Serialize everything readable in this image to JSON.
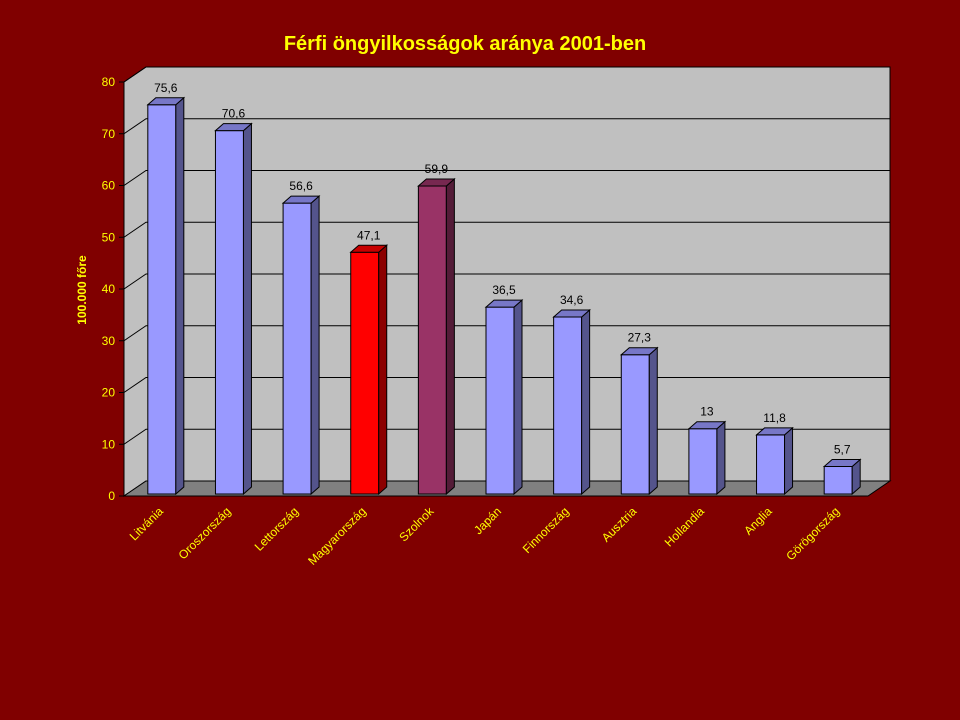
{
  "colors": {
    "background": "#800000",
    "text": "#FFFF00",
    "plot_wall": "#C0C0C0",
    "plot_floor": "#808080",
    "grid": "#000000",
    "bar_default": "#9999FF",
    "bar_highlight": "#FF0000",
    "bar_secondary": "#993366"
  },
  "chart_data": {
    "type": "bar",
    "title": "Férfi öngyilkosságok aránya 2001-ben",
    "xlabel": "",
    "ylabel": "100.000 főre",
    "ylim": [
      0,
      80
    ],
    "yticks": [
      0,
      10,
      20,
      30,
      40,
      50,
      60,
      70,
      80
    ],
    "grid": true,
    "legend": "none",
    "categories": [
      "Litvánia",
      "Oroszország",
      "Lettország",
      "Magyarország",
      "Szolnok",
      "Japán",
      "Finnország",
      "Ausztria",
      "Hollandia",
      "Anglia",
      "Görögország"
    ],
    "values": [
      75.6,
      70.6,
      56.6,
      47.1,
      59.9,
      36.5,
      34.6,
      27.3,
      13,
      11.8,
      5.7
    ],
    "value_labels": [
      "75,6",
      "70,6",
      "56,6",
      "47,1",
      "59,9",
      "36,5",
      "34,6",
      "27,3",
      "13",
      "11,8",
      "5,7"
    ],
    "bar_colors": [
      "#9999FF",
      "#9999FF",
      "#9999FF",
      "#FF0000",
      "#993366",
      "#9999FF",
      "#9999FF",
      "#9999FF",
      "#9999FF",
      "#9999FF",
      "#9999FF"
    ]
  }
}
